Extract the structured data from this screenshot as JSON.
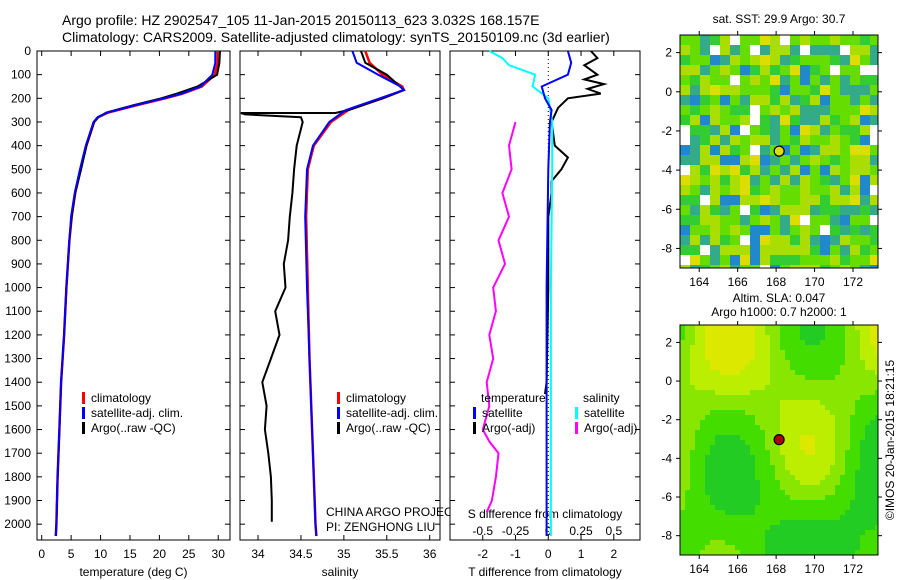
{
  "header": {
    "line1": "Argo profile: HZ 2902547_105 11-Jan-2015 20150113_623 3.032S 168.157E",
    "line2": "Climatology: CARS2009. Satellite-adjusted climatology: synTS_20150109.nc (3d earlier)"
  },
  "colors": {
    "climatology": "#ff0000",
    "satellite": "#0000ff",
    "argo": "#000000",
    "sal_satellite": "#00ffff",
    "sal_argo": "#ff00ff"
  },
  "chart_data": [
    {
      "type": "line",
      "id": "temperature",
      "xlabel": "temperature (deg C)",
      "ylabel": "",
      "xlim": [
        -0.8,
        32
      ],
      "ylim": [
        2050,
        0
      ],
      "xticks": [
        0,
        5,
        10,
        15,
        20,
        25,
        30
      ],
      "yticks": [
        0,
        100,
        200,
        300,
        400,
        500,
        600,
        700,
        800,
        900,
        1000,
        1100,
        1200,
        1300,
        1400,
        1500,
        1600,
        1700,
        1800,
        1900,
        2000
      ],
      "legend": {
        "placement": "bottom-middle",
        "entries": [
          "climatology",
          "satellite-adj. clim.",
          "Argo(..raw -QC)"
        ]
      },
      "depth": [
        0,
        50,
        100,
        150,
        180,
        200,
        230,
        260,
        280,
        300,
        400,
        500,
        600,
        700,
        800,
        1000,
        1200,
        1400,
        1600,
        1800,
        2000,
        2050
      ],
      "series": [
        {
          "name": "climatology",
          "values": [
            29.9,
            29.9,
            29.4,
            27.2,
            24,
            21,
            16,
            11.3,
            9.6,
            8.9,
            7.6,
            6.6,
            5.7,
            5.1,
            4.7,
            4.2,
            3.8,
            3.3,
            3,
            2.7,
            2.5,
            2.4
          ]
        },
        {
          "name": "satellite-adj. clim.",
          "values": [
            29.5,
            29.5,
            29,
            27,
            23.8,
            20.8,
            15.8,
            11.2,
            9.5,
            8.8,
            7.5,
            6.5,
            5.6,
            5,
            4.7,
            4.2,
            3.8,
            3.3,
            3,
            2.7,
            2.5,
            2.4
          ]
        },
        {
          "name": "Argo(..raw -QC)",
          "values": [
            30.3,
            30.2,
            29.8,
            26.5,
            23,
            20.3,
            15.5,
            11,
            9.6,
            8.9,
            7.6,
            6.7,
            5.7,
            5.1,
            4.7,
            4.2,
            3.8,
            3.3,
            3,
            2.7,
            2.5,
            2.4
          ]
        }
      ]
    },
    {
      "type": "line",
      "id": "salinity",
      "xlabel": "salinity",
      "xlim": [
        33.79,
        36.12
      ],
      "ylim": [
        2050,
        0
      ],
      "xticks": [
        34,
        34.5,
        35,
        35.5,
        36
      ],
      "legend": {
        "placement": "bottom-middle",
        "entries": [
          "climatology",
          "satellite-adj. clim.",
          "Argo(..raw -QC)"
        ]
      },
      "depth": [
        0,
        50,
        100,
        150,
        165,
        200,
        250,
        300,
        400,
        500,
        700,
        1000,
        1300,
        1600,
        2000,
        2050
      ],
      "series": [
        {
          "name": "climatology",
          "values": [
            35.25,
            35.3,
            35.45,
            35.68,
            35.7,
            35.45,
            35.05,
            34.85,
            34.65,
            34.58,
            34.56,
            34.58,
            34.6,
            34.63,
            34.67,
            34.68
          ]
        },
        {
          "name": "satellite-adj. clim.",
          "values": [
            35.1,
            35.15,
            35.4,
            35.66,
            35.7,
            35.42,
            35.02,
            34.83,
            34.64,
            34.57,
            34.55,
            34.57,
            34.6,
            34.63,
            34.67,
            34.68
          ]
        },
        {
          "name": "Argo(..raw -QC)",
          "depth": [
            0,
            50,
            100,
            165,
            200,
            250,
            262,
            262,
            268,
            280,
            300,
            400,
            500,
            600,
            700,
            800,
            900,
            1000,
            1100,
            1200,
            1300,
            1400,
            1500,
            1600,
            1700,
            1800,
            1900,
            1990
          ],
          "values": [
            35.2,
            35.25,
            35.5,
            35.7,
            35.45,
            35.05,
            34.9,
            33.8,
            33.85,
            34.5,
            34.52,
            34.45,
            34.42,
            34.4,
            34.37,
            34.35,
            34.3,
            34.32,
            34.2,
            34.25,
            34.15,
            34.05,
            34.1,
            34.08,
            34.12,
            34.15,
            34.16,
            34.16
          ]
        }
      ],
      "annotations": [
        "CHINA ARGO PROJECT",
        "PI: ZENGHONG LIU"
      ]
    },
    {
      "type": "line",
      "id": "difference",
      "xlabel": "T difference from climatology",
      "xlabel_top": "S difference from climatology",
      "xlim": [
        -3,
        2.8
      ],
      "ylim": [
        2050,
        0
      ],
      "xticks": [
        -2,
        -1,
        0,
        1,
        2
      ],
      "xticks_S": [
        "-0.5",
        "-0.25",
        "0",
        "0.25",
        "0.5"
      ],
      "legend": {
        "placement": "bottom",
        "headers": [
          "temperature",
          "salinity"
        ],
        "entries": [
          "satellite",
          "Argo(-adj)",
          "satellite",
          "Argo(-adj)"
        ]
      },
      "series": [
        {
          "name": "temperature satellite",
          "depth": [
            0,
            50,
            100,
            150,
            200,
            250,
            300,
            500,
            1000,
            2050
          ],
          "values": [
            0.6,
            0.7,
            0.6,
            -0.2,
            -0.1,
            0.1,
            0.05,
            0,
            -0.05,
            -0.05
          ]
        },
        {
          "name": "temperature Argo(-adj)",
          "depth": [
            0,
            30,
            60,
            100,
            120,
            140,
            160,
            180,
            200,
            240,
            300,
            400,
            450,
            500,
            550,
            600,
            700,
            1000,
            1400,
            1450
          ],
          "values": [
            1.3,
            1.5,
            1.1,
            1.5,
            1.1,
            1.7,
            1.2,
            1.6,
            0.6,
            0.3,
            0.1,
            0.2,
            0.6,
            0.4,
            0.1,
            0.1,
            0,
            0,
            -0.05,
            -0.1
          ]
        },
        {
          "name": "salinity satellite",
          "depth": [
            0,
            30,
            60,
            100,
            150,
            200,
            300,
            500,
            1000,
            2050
          ],
          "values": [
            -0.45,
            -0.35,
            -0.3,
            -0.1,
            -0.12,
            0,
            0.03,
            0.03,
            0.02,
            0.02
          ]
        },
        {
          "name": "salinity Argo(-adj)",
          "depth": [
            300,
            400,
            500,
            600,
            700,
            800,
            900,
            1000,
            1100,
            1200,
            1300,
            1400,
            1500,
            1600,
            1650,
            1700,
            1800,
            1900,
            1950
          ],
          "values": [
            -0.25,
            -0.3,
            -0.28,
            -0.35,
            -0.3,
            -0.38,
            -0.33,
            -0.42,
            -0.4,
            -0.45,
            -0.42,
            -0.47,
            -0.45,
            -0.5,
            -0.45,
            -0.38,
            -0.4,
            -0.43,
            -0.47
          ]
        }
      ]
    },
    {
      "type": "heatmap",
      "id": "sst-map",
      "title": "sat. SST: 29.9 Argo: 30.7",
      "xticks": [
        164,
        166,
        168,
        170,
        172
      ],
      "yticks": [
        2,
        0,
        -2,
        -4,
        -6,
        -8
      ],
      "xlim": [
        163,
        173.3
      ],
      "ylim": [
        -9,
        2.9
      ],
      "float_position": [
        168.157,
        -3.032
      ]
    },
    {
      "type": "heatmap",
      "id": "sla-map",
      "title": "Altim. SLA: 0.047",
      "subtitle": "Argo h1000: 0.7 h2000: 1",
      "xticks": [
        164,
        166,
        168,
        170,
        172
      ],
      "yticks": [
        2,
        0,
        -2,
        -4,
        -6,
        -8
      ],
      "xlim": [
        163,
        173.3
      ],
      "ylim": [
        -9,
        2.9
      ],
      "float_position": [
        168.157,
        -3.032
      ]
    }
  ],
  "credit": "©IMOS 20-Jan-2015 18:21:15"
}
